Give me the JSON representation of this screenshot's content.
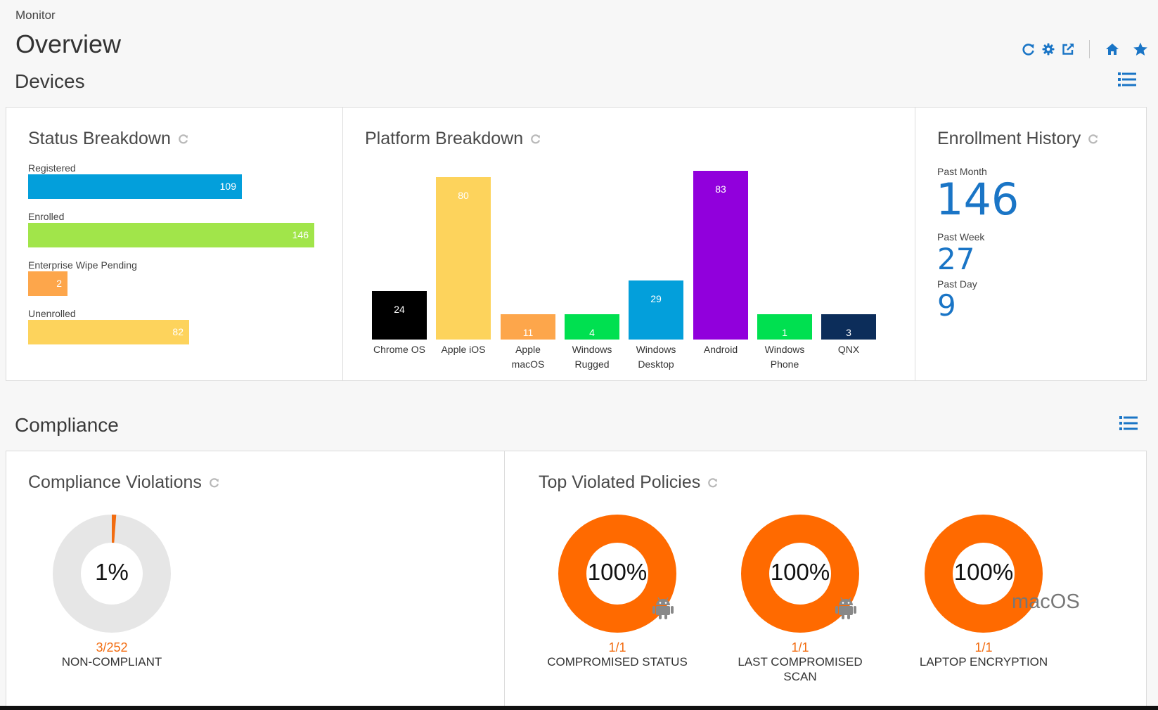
{
  "header": {
    "breadcrumb": "Monitor",
    "title": "Overview"
  },
  "devices": {
    "section_title": "Devices",
    "status": {
      "title": "Status Breakdown",
      "items": [
        {
          "label": "Registered",
          "value": 109,
          "color": "#039fdb"
        },
        {
          "label": "Enrolled",
          "value": 146,
          "color": "#a1e54a"
        },
        {
          "label": "Enterprise Wipe Pending",
          "value": 2,
          "color": "#fda64b"
        },
        {
          "label": "Unenrolled",
          "value": 82,
          "color": "#fdd35c"
        }
      ]
    },
    "platform": {
      "title": "Platform Breakdown",
      "bars": [
        {
          "label": "Chrome OS",
          "value": 24,
          "color": "#000000"
        },
        {
          "label": "Apple iOS",
          "value": 80,
          "color": "#fdd35c"
        },
        {
          "label": "Apple macOS",
          "value": 11,
          "color": "#fda64b"
        },
        {
          "label": "Windows Rugged",
          "value": 4,
          "color": "#00e050"
        },
        {
          "label": "Windows Desktop",
          "value": 29,
          "color": "#039fdb"
        },
        {
          "label": "Android",
          "value": 83,
          "color": "#9100dc"
        },
        {
          "label": "Windows Phone",
          "value": 1,
          "color": "#00e050"
        },
        {
          "label": "QNX",
          "value": 3,
          "color": "#0c2d5a"
        }
      ]
    },
    "enrollment": {
      "title": "Enrollment History",
      "month_label": "Past Month",
      "month_value": "146",
      "week_label": "Past Week",
      "week_value": "27",
      "day_label": "Past Day",
      "day_value": "9"
    }
  },
  "compliance": {
    "section_title": "Compliance",
    "violations": {
      "title": "Compliance Violations",
      "percent_text": "1%",
      "percent": 1.2,
      "fraction": "3/252",
      "caption": "NON-COMPLIANT"
    },
    "top_policies": {
      "title": "Top Violated Policies",
      "items": [
        {
          "percent_text": "100%",
          "fraction": "1/1",
          "caption": "COMPROMISED STATUS",
          "platform_icon": "android-icon"
        },
        {
          "percent_text": "100%",
          "fraction": "1/1",
          "caption": "LAST COMPROMISED SCAN",
          "platform_icon": "android-icon"
        },
        {
          "percent_text": "100%",
          "fraction": "1/1",
          "caption": "LAPTOP ENCRYPTION",
          "platform_label": "macOS"
        }
      ]
    }
  },
  "colors": {
    "accent": "#1a75c6",
    "violation": "#ff6a00",
    "donut_track": "#e6e6e6"
  }
}
